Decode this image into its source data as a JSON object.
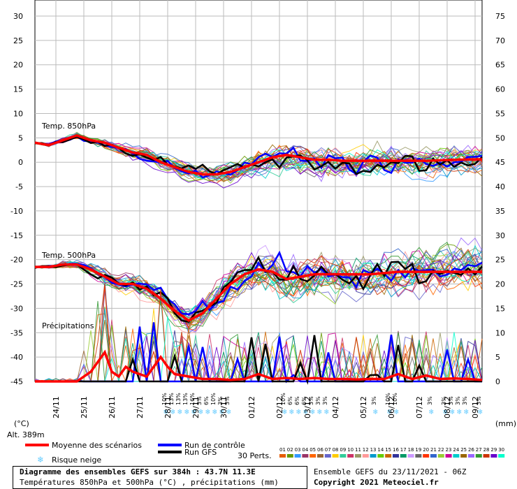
{
  "chart_data": {
    "type": "line",
    "left_axis": {
      "label": "(°C)",
      "ticks": [
        30,
        25,
        20,
        15,
        10,
        5,
        0,
        -5,
        -10,
        -15,
        -20,
        -25,
        -30,
        -35,
        -40,
        -45
      ],
      "range": [
        -45,
        30
      ]
    },
    "right_axis": {
      "label": "(mm)",
      "ticks": [
        75,
        70,
        65,
        60,
        55,
        50,
        45,
        40,
        35,
        30,
        25,
        20,
        15,
        10,
        5,
        0
      ],
      "range": [
        0,
        75
      ]
    },
    "altitude": "Alt. 389m",
    "x_labels": [
      "24/11",
      "25/11",
      "26/11",
      "27/11",
      "28/11",
      "29/11",
      "30/11",
      "01/12",
      "02/12",
      "03/12",
      "04/12",
      "05/12",
      "06/12",
      "07/12",
      "08/12",
      "09/12"
    ],
    "x_range_hours": [
      0,
      384
    ],
    "section_labels": [
      "Temp. 850hPa",
      "Temp. 500hPa",
      "Précipitations"
    ],
    "series": [
      {
        "name": "Moyenne des scénarios (850hPa)",
        "color": "#ff0000",
        "points": [
          [
            0,
            4
          ],
          [
            12,
            3.5
          ],
          [
            24,
            4.5
          ],
          [
            36,
            5.5
          ],
          [
            48,
            4.5
          ],
          [
            60,
            4
          ],
          [
            72,
            3
          ],
          [
            84,
            2
          ],
          [
            96,
            1.5
          ],
          [
            108,
            0
          ],
          [
            120,
            -1
          ],
          [
            132,
            -2
          ],
          [
            144,
            -2.5
          ],
          [
            156,
            -2.5
          ],
          [
            168,
            -2
          ],
          [
            180,
            -1
          ],
          [
            192,
            0
          ],
          [
            204,
            1
          ],
          [
            216,
            1.5
          ],
          [
            228,
            1
          ],
          [
            240,
            0.5
          ],
          [
            252,
            0.5
          ],
          [
            264,
            0.3
          ],
          [
            288,
            0.3
          ],
          [
            312,
            0.3
          ],
          [
            336,
            0.3
          ],
          [
            360,
            0.5
          ],
          [
            384,
            0.6
          ]
        ]
      },
      {
        "name": "Moyenne des scénarios (500hPa)",
        "color": "#ff0000",
        "points": [
          [
            0,
            -21.5
          ],
          [
            12,
            -21.5
          ],
          [
            24,
            -21
          ],
          [
            36,
            -21
          ],
          [
            48,
            -22
          ],
          [
            60,
            -23.5
          ],
          [
            72,
            -25
          ],
          [
            84,
            -25
          ],
          [
            96,
            -26
          ],
          [
            108,
            -28
          ],
          [
            120,
            -30.5
          ],
          [
            132,
            -32.5
          ],
          [
            144,
            -31
          ],
          [
            156,
            -28
          ],
          [
            168,
            -25
          ],
          [
            180,
            -23
          ],
          [
            192,
            -22
          ],
          [
            204,
            -22.5
          ],
          [
            216,
            -24
          ],
          [
            228,
            -23.5
          ],
          [
            240,
            -23
          ],
          [
            252,
            -23
          ],
          [
            264,
            -23
          ],
          [
            288,
            -23
          ],
          [
            312,
            -22.5
          ],
          [
            336,
            -22.5
          ],
          [
            360,
            -22.5
          ],
          [
            384,
            -22.5
          ]
        ]
      },
      {
        "name": "Moyenne des scénarios (Précipitations mm)",
        "color": "#ff0000",
        "points": [
          [
            0,
            0
          ],
          [
            12,
            0
          ],
          [
            24,
            0
          ],
          [
            36,
            0
          ],
          [
            48,
            2
          ],
          [
            60,
            6
          ],
          [
            66,
            2
          ],
          [
            72,
            1
          ],
          [
            78,
            3
          ],
          [
            84,
            2
          ],
          [
            96,
            1
          ],
          [
            108,
            5
          ],
          [
            114,
            3
          ],
          [
            120,
            1.5
          ],
          [
            132,
            1
          ],
          [
            144,
            0.5
          ],
          [
            156,
            0.5
          ],
          [
            168,
            0.3
          ],
          [
            180,
            0.5
          ],
          [
            192,
            1.5
          ],
          [
            204,
            0.5
          ],
          [
            216,
            0.7
          ],
          [
            228,
            0.5
          ],
          [
            240,
            0.7
          ],
          [
            252,
            0.5
          ],
          [
            264,
            0.5
          ],
          [
            276,
            0.4
          ],
          [
            288,
            0.5
          ],
          [
            300,
            0.5
          ],
          [
            312,
            1.5
          ],
          [
            324,
            0.5
          ],
          [
            336,
            1.2
          ],
          [
            348,
            0.5
          ],
          [
            360,
            0.6
          ],
          [
            372,
            0.5
          ],
          [
            384,
            0.3
          ]
        ]
      }
    ],
    "legend": {
      "mean": "Moyenne des scénarios",
      "control": "Run de contrôle",
      "gfs": "Run GFS",
      "snow": "Risque neige",
      "perts_label": "30 Perts.",
      "pert_numbers": [
        "01",
        "02",
        "03",
        "04",
        "05",
        "06",
        "07",
        "08",
        "09",
        "10",
        "11",
        "12",
        "13",
        "14",
        "15",
        "16",
        "17",
        "18",
        "19",
        "20",
        "21",
        "22",
        "23",
        "24",
        "25",
        "26",
        "27",
        "28",
        "29",
        "30"
      ],
      "pert_colors": [
        "#e65c00",
        "#669900",
        "#3399ff",
        "#993366",
        "#ff6600",
        "#996633",
        "#6666cc",
        "#ffcc00",
        "#33cc99",
        "#cc3366",
        "#999966",
        "#ff9999",
        "#0099cc",
        "#66cc00",
        "#cc6600",
        "#333399",
        "#009966",
        "#cc99ff",
        "#666666",
        "#ff3300",
        "#3366cc",
        "#99cc33",
        "#cc0099",
        "#00cccc",
        "#996600",
        "#9966ff",
        "#339933",
        "#cc3300",
        "#6600cc",
        "#00ffcc"
      ]
    },
    "snow_risk": [
      {
        "label": "10%"
      },
      {
        "label": "13%"
      },
      {
        "label": "13%"
      },
      {
        "label": "13%"
      },
      {
        "label": "16%"
      },
      {
        "label": "3%"
      },
      {
        "label": "6%"
      },
      {
        "label": "10%"
      },
      {
        "label": "3%"
      },
      {
        "label": "3%"
      },
      {
        "label": "10%"
      },
      {
        "label": "6%"
      },
      {
        "label": "6%"
      },
      {
        "label": "6%"
      },
      {
        "label": "3%"
      },
      {
        "label": "3%"
      },
      {
        "label": "3%"
      },
      {
        "label": "3%"
      },
      {
        "label": "10%"
      },
      {
        "label": "10%"
      },
      {
        "label": "3%"
      },
      {
        "label": "3%"
      },
      {
        "label": "3%"
      },
      {
        "label": "3%"
      },
      {
        "label": "3%"
      },
      {
        "label": "3%"
      }
    ],
    "colors": {
      "mean": "#ff0000",
      "control": "#0000ff",
      "gfs": "#000000",
      "snow": "#66ccff"
    }
  },
  "footer": {
    "title": "Diagramme des ensembles GEFS sur 384h : 43.7N 11.3E",
    "subtitle": "Températures 850hPa et 500hPa (°C) , précipitations (mm)",
    "run": "Ensemble GEFS du 23/11/2021 - 06Z",
    "copyright": "Copyright 2021 Meteociel.fr"
  }
}
